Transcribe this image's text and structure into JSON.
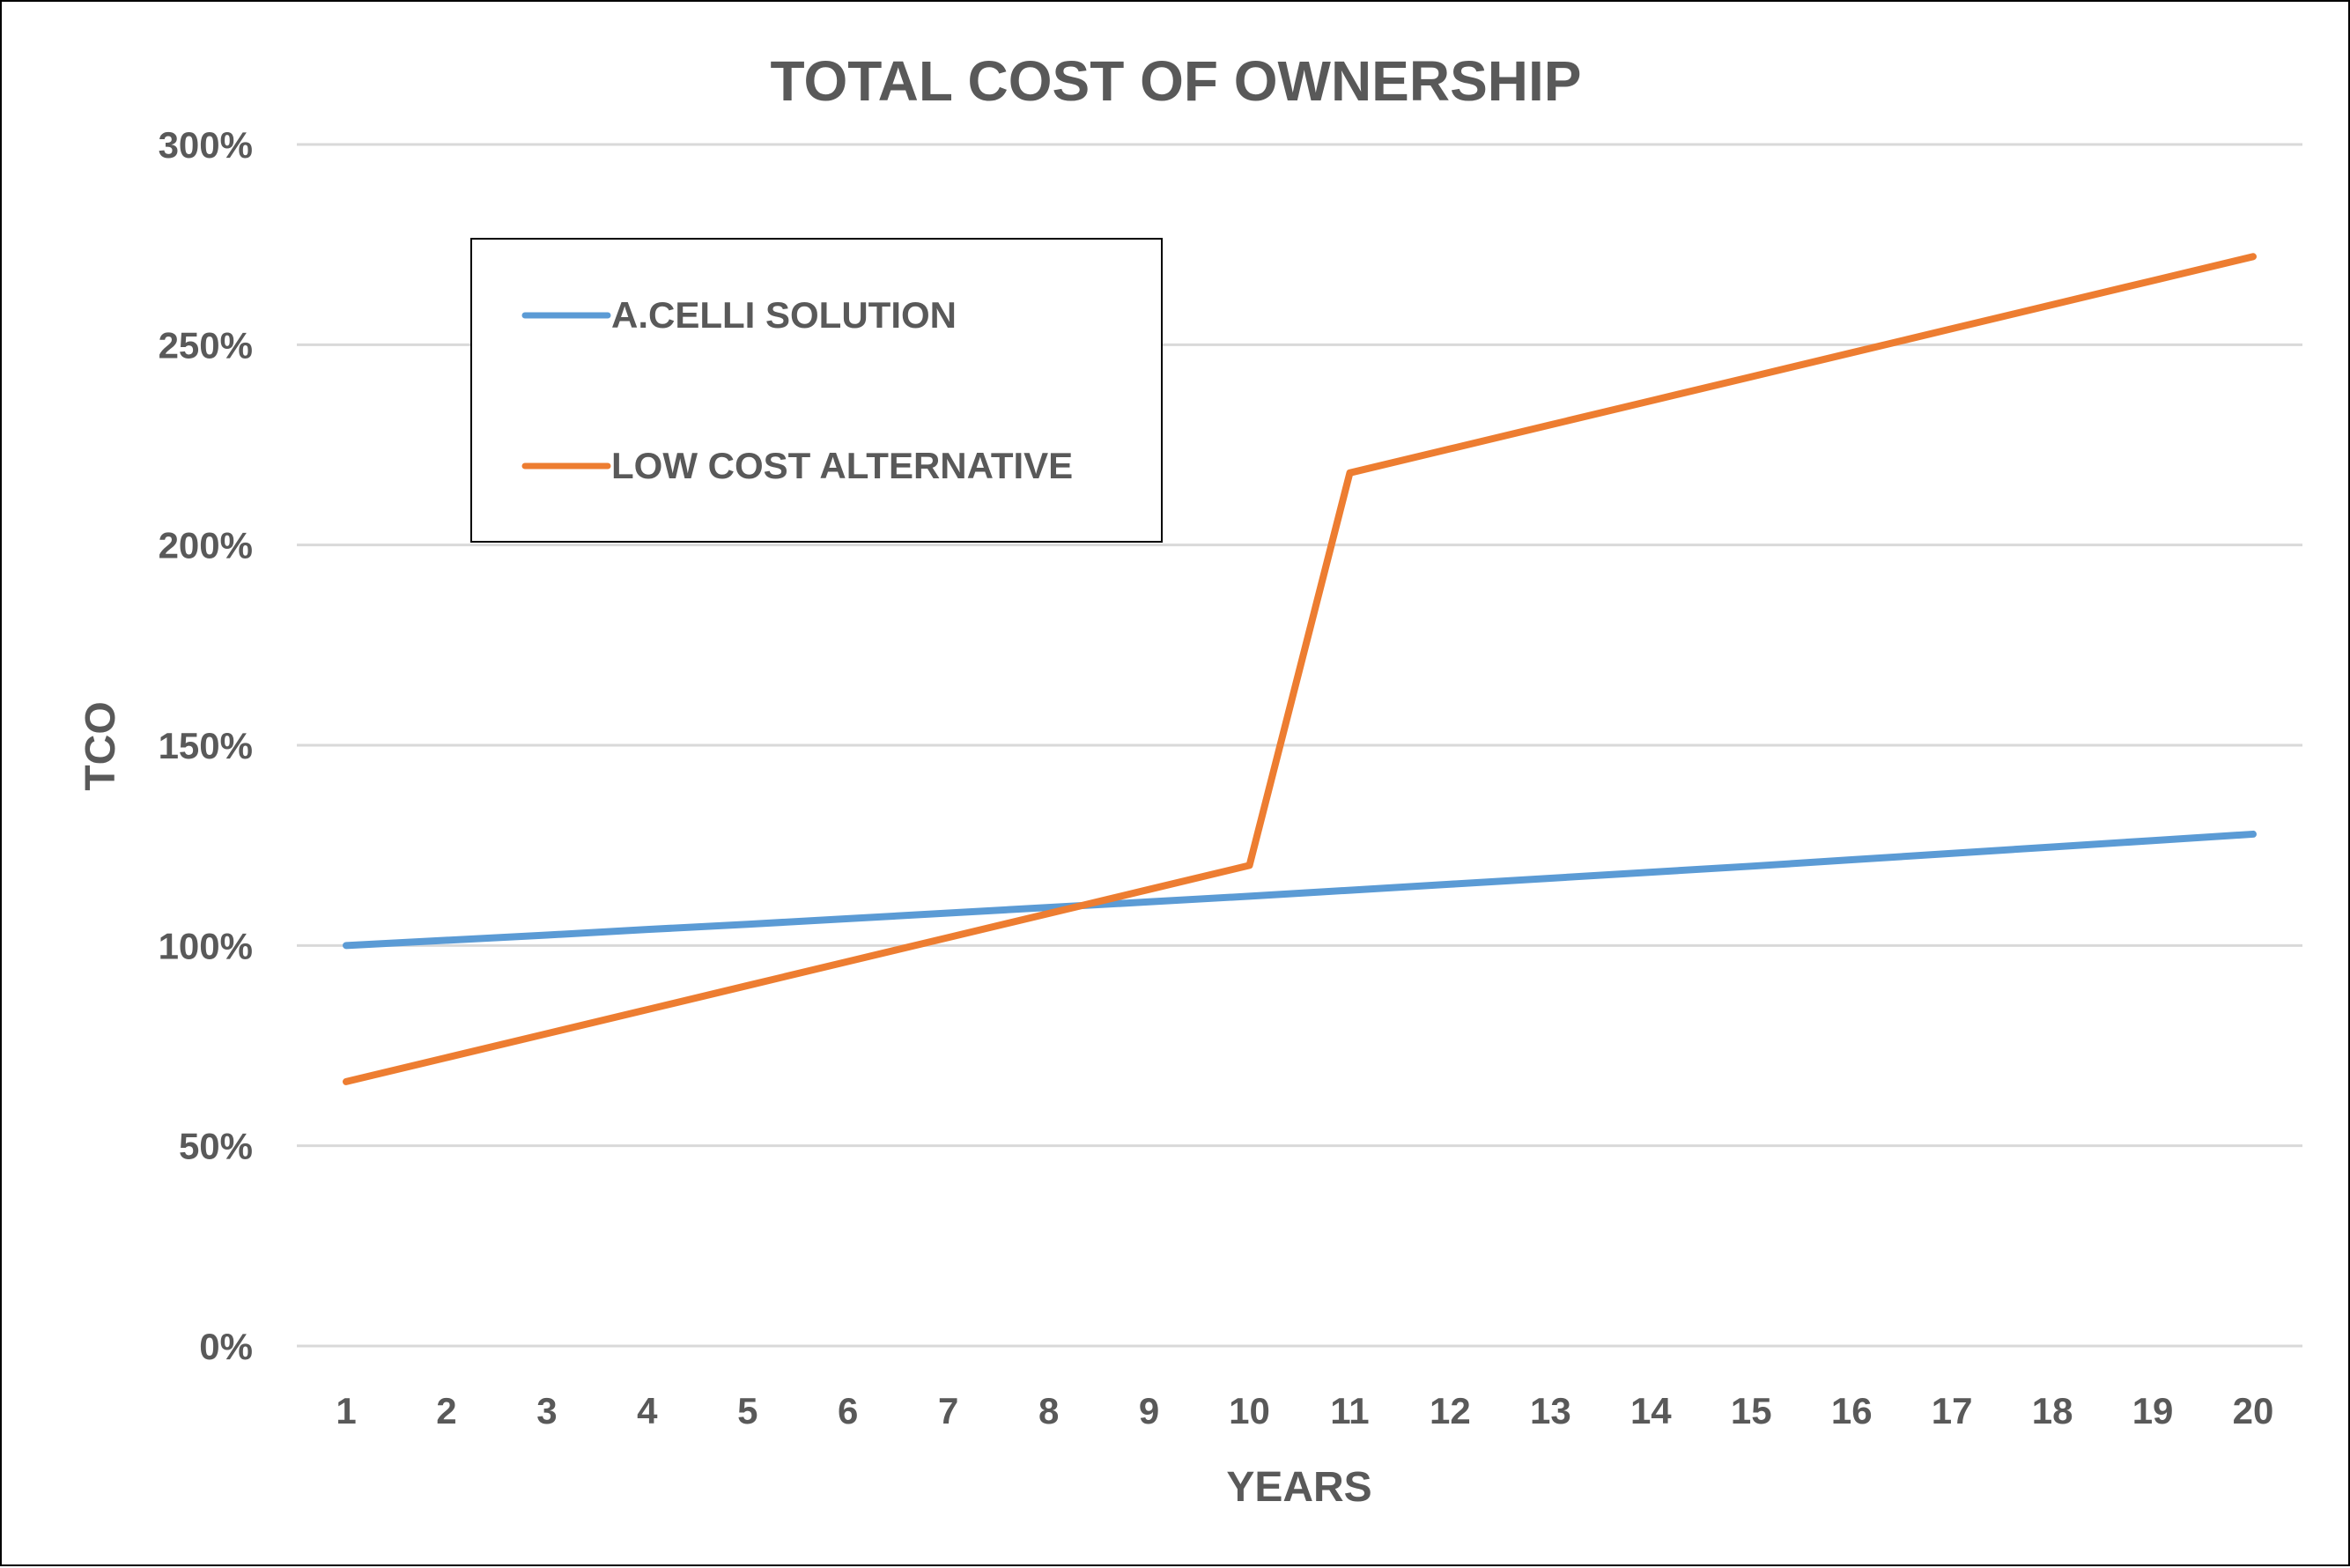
{
  "chart_data": {
    "type": "line",
    "title": "TOTAL COST OF OWNERSHIP",
    "xlabel": "YEARS",
    "ylabel": "TCO",
    "x": [
      1,
      2,
      3,
      4,
      5,
      6,
      7,
      8,
      9,
      10,
      11,
      12,
      13,
      14,
      15,
      16,
      17,
      18,
      19,
      20
    ],
    "yticks": [
      "0%",
      "50%",
      "100%",
      "150%",
      "200%",
      "250%",
      "300%"
    ],
    "ylim": [
      0,
      300
    ],
    "y_unit": "%",
    "grid": true,
    "legend_position": "top-left",
    "series": [
      {
        "name": "A.CELLI SOLUTION",
        "color": "#5B9BD5",
        "values": [
          100,
          101.3,
          102.6,
          104,
          105.3,
          106.7,
          108.1,
          109.5,
          110.9,
          112.3,
          113.8,
          115.3,
          116.8,
          118.3,
          119.8,
          121.4,
          123,
          124.6,
          126.2,
          127.8
        ]
      },
      {
        "name": "LOW COST ALTERNATIVE",
        "color": "#ED7D31",
        "values": [
          66,
          72,
          78,
          84,
          90,
          96,
          102,
          108,
          114,
          120,
          218,
          224,
          230,
          236,
          242,
          248,
          254,
          260,
          266,
          272
        ]
      }
    ]
  }
}
